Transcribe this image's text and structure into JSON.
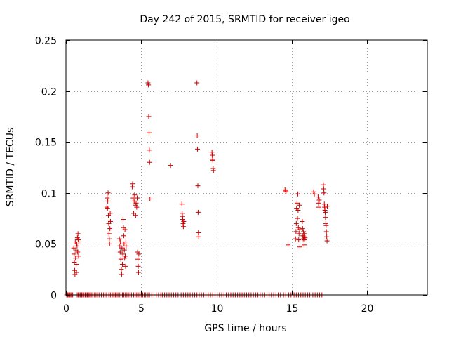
{
  "chart_data": {
    "type": "scatter",
    "title": "Day 242 of 2015, SRMTID for receiver igeo",
    "xlabel": "GPS time / hours",
    "ylabel": "SRMTID / TECUs",
    "xlim": [
      0,
      24
    ],
    "ylim": [
      0,
      0.25
    ],
    "xticks": [
      0,
      5,
      10,
      15,
      20
    ],
    "xtick_labels": [
      "0",
      "5",
      "10",
      "15",
      "20"
    ],
    "yticks": [
      0,
      0.05,
      0.1,
      0.15,
      0.2,
      0.25
    ],
    "ytick_labels": [
      "0",
      "0.05",
      "0.1",
      "0.15",
      "0.2",
      "0.25"
    ],
    "grid": true,
    "marker": "plus",
    "color": "#cc0000",
    "series": [
      {
        "name": "igeo",
        "points": [
          [
            0.52,
            0.046
          ],
          [
            0.55,
            0.04
          ],
          [
            0.56,
            0.032
          ],
          [
            0.58,
            0.024
          ],
          [
            0.6,
            0.02
          ],
          [
            0.62,
            0.052
          ],
          [
            0.64,
            0.036
          ],
          [
            0.66,
            0.044
          ],
          [
            0.68,
            0.03
          ],
          [
            0.7,
            0.022
          ],
          [
            0.72,
            0.05
          ],
          [
            0.74,
            0.048
          ],
          [
            0.76,
            0.056
          ],
          [
            0.78,
            0.042
          ],
          [
            0.8,
            0.06
          ],
          [
            0.82,
            0.054
          ],
          [
            0.84,
            0.038
          ],
          [
            0.86,
            0.052
          ],
          [
            2.72,
            0.086
          ],
          [
            2.74,
            0.095
          ],
          [
            2.76,
            0.085
          ],
          [
            2.78,
            0.092
          ],
          [
            2.8,
            0.1
          ],
          [
            2.82,
            0.078
          ],
          [
            2.84,
            0.07
          ],
          [
            2.86,
            0.06
          ],
          [
            2.88,
            0.055
          ],
          [
            2.9,
            0.05
          ],
          [
            2.92,
            0.065
          ],
          [
            2.94,
            0.08
          ],
          [
            2.96,
            0.072
          ],
          [
            3.55,
            0.055
          ],
          [
            3.58,
            0.048
          ],
          [
            3.6,
            0.042
          ],
          [
            3.62,
            0.052
          ],
          [
            3.65,
            0.035
          ],
          [
            3.68,
            0.025
          ],
          [
            3.7,
            0.02
          ],
          [
            3.72,
            0.046
          ],
          [
            3.75,
            0.03
          ],
          [
            3.78,
            0.04
          ],
          [
            3.8,
            0.074
          ],
          [
            3.82,
            0.066
          ],
          [
            3.84,
            0.058
          ],
          [
            3.86,
            0.05
          ],
          [
            3.88,
            0.044
          ],
          [
            3.9,
            0.036
          ],
          [
            3.92,
            0.064
          ],
          [
            3.94,
            0.038
          ],
          [
            3.96,
            0.028
          ],
          [
            3.98,
            0.052
          ],
          [
            4.0,
            0.048
          ],
          [
            4.4,
            0.106
          ],
          [
            4.43,
            0.109
          ],
          [
            4.46,
            0.095
          ],
          [
            4.5,
            0.08
          ],
          [
            4.53,
            0.092
          ],
          [
            4.56,
            0.098
          ],
          [
            4.6,
            0.088
          ],
          [
            4.63,
            0.078
          ],
          [
            4.66,
            0.09
          ],
          [
            4.7,
            0.086
          ],
          [
            4.73,
            0.095
          ],
          [
            4.76,
            0.042
          ],
          [
            4.78,
            0.035
          ],
          [
            4.8,
            0.028
          ],
          [
            4.82,
            0.022
          ],
          [
            4.84,
            0.04
          ],
          [
            5.45,
            0.208
          ],
          [
            5.48,
            0.206
          ],
          [
            5.5,
            0.175
          ],
          [
            5.52,
            0.159
          ],
          [
            5.54,
            0.142
          ],
          [
            5.56,
            0.13
          ],
          [
            5.58,
            0.094
          ],
          [
            6.95,
            0.127
          ],
          [
            7.7,
            0.089
          ],
          [
            7.72,
            0.08
          ],
          [
            7.74,
            0.077
          ],
          [
            7.76,
            0.074
          ],
          [
            7.78,
            0.07
          ],
          [
            7.8,
            0.067
          ],
          [
            7.82,
            0.072
          ],
          [
            8.7,
            0.208
          ],
          [
            8.72,
            0.156
          ],
          [
            8.74,
            0.143
          ],
          [
            8.76,
            0.107
          ],
          [
            8.78,
            0.081
          ],
          [
            8.8,
            0.061
          ],
          [
            8.82,
            0.057
          ],
          [
            9.7,
            0.14
          ],
          [
            9.72,
            0.137
          ],
          [
            9.74,
            0.133
          ],
          [
            9.76,
            0.132
          ],
          [
            9.78,
            0.124
          ],
          [
            9.8,
            0.122
          ],
          [
            14.55,
            0.103
          ],
          [
            14.6,
            0.102
          ],
          [
            14.62,
            0.101
          ],
          [
            14.75,
            0.049
          ],
          [
            15.25,
            0.055
          ],
          [
            15.28,
            0.062
          ],
          [
            15.3,
            0.07
          ],
          [
            15.32,
            0.085
          ],
          [
            15.35,
            0.09
          ],
          [
            15.38,
            0.075
          ],
          [
            15.4,
            0.099
          ],
          [
            15.42,
            0.083
          ],
          [
            15.44,
            0.066
          ],
          [
            15.46,
            0.054
          ],
          [
            15.48,
            0.06
          ],
          [
            15.5,
            0.088
          ],
          [
            15.52,
            0.064
          ],
          [
            15.54,
            0.047
          ],
          [
            15.7,
            0.072
          ],
          [
            15.72,
            0.065
          ],
          [
            15.74,
            0.058
          ],
          [
            15.76,
            0.055
          ],
          [
            15.78,
            0.062
          ],
          [
            15.8,
            0.057
          ],
          [
            15.82,
            0.049
          ],
          [
            15.84,
            0.054
          ],
          [
            15.86,
            0.06
          ],
          [
            15.88,
            0.056
          ],
          [
            16.45,
            0.101
          ],
          [
            16.5,
            0.099
          ],
          [
            16.75,
            0.096
          ],
          [
            16.78,
            0.09
          ],
          [
            16.8,
            0.086
          ],
          [
            16.82,
            0.093
          ],
          [
            17.1,
            0.108
          ],
          [
            17.12,
            0.104
          ],
          [
            17.14,
            0.1
          ],
          [
            17.16,
            0.089
          ],
          [
            17.18,
            0.086
          ],
          [
            17.2,
            0.083
          ],
          [
            17.22,
            0.081
          ],
          [
            17.24,
            0.076
          ],
          [
            17.26,
            0.07
          ],
          [
            17.28,
            0.068
          ],
          [
            17.3,
            0.062
          ],
          [
            17.32,
            0.057
          ],
          [
            17.34,
            0.053
          ],
          [
            17.36,
            0.087
          ]
        ],
        "zero_x": [
          0.05,
          0.12,
          0.18,
          0.25,
          0.32,
          0.38,
          0.45,
          0.75,
          0.82,
          0.88,
          0.95,
          1.05,
          1.12,
          1.2,
          1.28,
          1.35,
          1.42,
          1.5,
          1.58,
          1.65,
          1.72,
          1.8,
          1.9,
          2.0,
          2.1,
          2.2,
          2.35,
          2.5,
          2.6,
          2.7,
          2.85,
          2.95,
          3.05,
          3.12,
          3.2,
          3.28,
          3.35,
          3.45,
          3.55,
          3.65,
          3.75,
          3.85,
          3.95,
          4.05,
          4.15,
          4.25,
          4.35,
          4.5,
          4.6,
          4.7,
          4.8,
          4.9,
          5.0,
          5.1,
          5.2,
          5.3,
          5.45,
          5.55,
          5.7,
          5.85,
          6.0,
          6.15,
          6.3,
          6.4,
          6.55,
          6.7,
          6.85,
          7.0,
          7.15,
          7.3,
          7.45,
          7.65,
          7.8,
          7.95,
          8.1,
          8.25,
          8.4,
          8.55,
          8.7,
          8.85,
          9.0,
          9.15,
          9.3,
          9.45,
          9.6,
          9.75,
          9.9,
          10.05,
          10.2,
          10.35,
          10.5,
          10.65,
          10.8,
          10.95,
          11.1,
          11.25,
          11.4,
          11.55,
          11.7,
          11.85,
          12.0,
          12.15,
          12.3,
          12.45,
          12.6,
          12.75,
          12.9,
          13.05,
          13.2,
          13.35,
          13.5,
          13.65,
          13.8,
          13.95,
          14.1,
          14.25,
          14.45,
          14.6,
          14.8,
          14.95,
          15.15,
          15.3,
          15.45,
          15.6,
          15.75,
          15.9,
          16.05,
          16.2,
          16.4,
          16.55,
          16.7,
          16.85,
          17.0
        ]
      }
    ]
  }
}
